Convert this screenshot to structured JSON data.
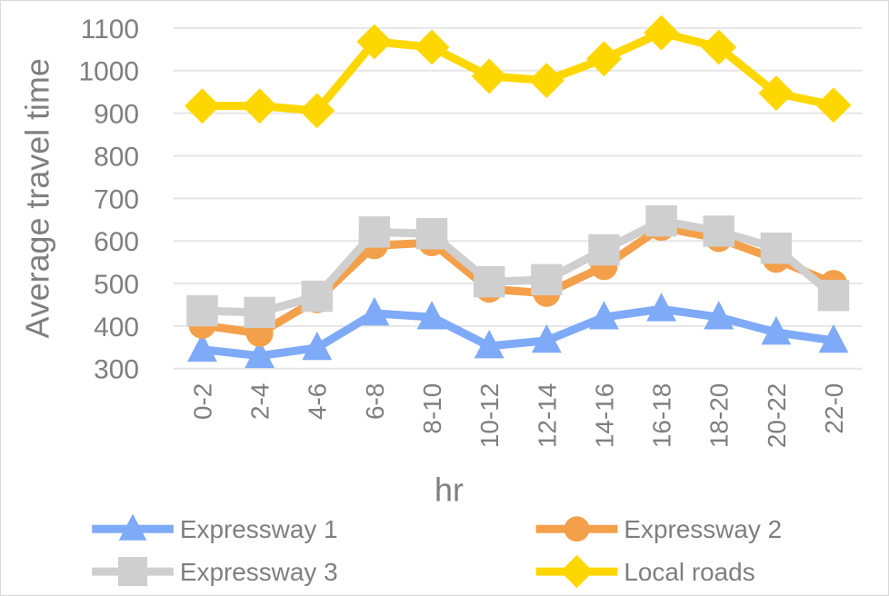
{
  "chart_data": {
    "type": "line",
    "title": "",
    "xlabel": "hr",
    "ylabel": "Average travel time",
    "ylim": [
      300,
      1100
    ],
    "yticks": [
      300,
      400,
      500,
      600,
      700,
      800,
      900,
      1000,
      1100
    ],
    "grid": true,
    "legend_position": "bottom",
    "categories": [
      "0-2",
      "2-4",
      "4-6",
      "6-8",
      "8-10",
      "10-12",
      "12-14",
      "14-16",
      "16-18",
      "18-20",
      "20-22",
      "22-0"
    ],
    "series": [
      {
        "name": "Expressway 1",
        "color": "#7faaf7",
        "marker": "triangle",
        "values": [
          345,
          330,
          349,
          430,
          421,
          353,
          366,
          421,
          440,
          421,
          385,
          366
        ]
      },
      {
        "name": "Expressway 2",
        "color": "#f4a04a",
        "marker": "circle",
        "values": [
          402,
          383,
          462,
          589,
          596,
          487,
          477,
          540,
          632,
          606,
          557,
          500
        ]
      },
      {
        "name": "Expressway 3",
        "color": "#cfcfcf",
        "marker": "square",
        "values": [
          436,
          432,
          470,
          621,
          617,
          504,
          509,
          579,
          647,
          623,
          583,
          472
        ]
      },
      {
        "name": "Local roads",
        "color": "#ffd700",
        "marker": "diamond",
        "values": [
          917,
          917,
          906,
          1068,
          1055,
          987,
          977,
          1028,
          1089,
          1055,
          947,
          919
        ]
      }
    ]
  }
}
